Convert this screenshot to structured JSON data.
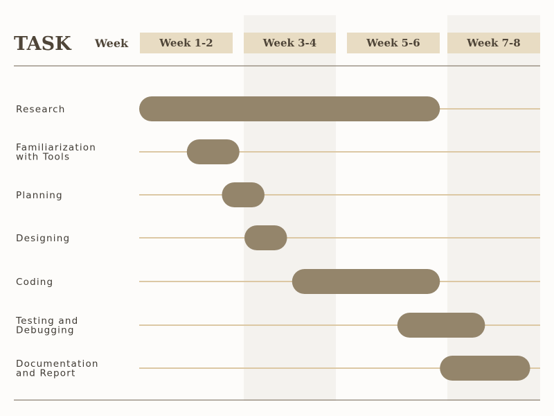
{
  "header": {
    "task_title": "TASK",
    "week_label": "Week"
  },
  "colors": {
    "bar": "#94856b",
    "line": "#dcc8a4",
    "header_cell": "#e8dcc3",
    "shade": "#f4f2ee",
    "rule": "#8a7f70"
  },
  "chart_data": {
    "type": "gantt",
    "x_unit": "week",
    "xlim": [
      0,
      8
    ],
    "columns": [
      "Week 1-2",
      "Week 3-4",
      "Week 5-6",
      "Week 7-8"
    ],
    "tasks": [
      {
        "label": [
          "Research"
        ],
        "start": 0.0,
        "end": 6.0
      },
      {
        "label": [
          "Familiarization",
          "with Tools"
        ],
        "start": 0.95,
        "end": 2.0
      },
      {
        "label": [
          "Planning"
        ],
        "start": 1.65,
        "end": 2.5
      },
      {
        "label": [
          "Designing"
        ],
        "start": 2.1,
        "end": 2.95
      },
      {
        "label": [
          "Coding"
        ],
        "start": 3.05,
        "end": 6.0
      },
      {
        "label": [
          "Testing and",
          "Debugging"
        ],
        "start": 5.15,
        "end": 6.9
      },
      {
        "label": [
          "Documentation",
          "and Report"
        ],
        "start": 6.0,
        "end": 7.8
      }
    ]
  }
}
